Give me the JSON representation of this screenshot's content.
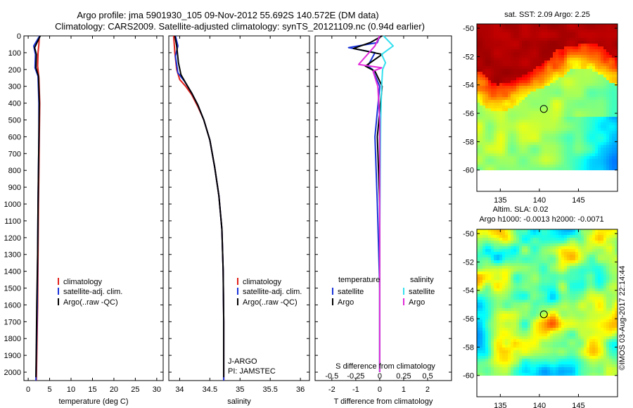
{
  "header": {
    "line1": "Argo profile: jma 5901930_105 09-Nov-2012 55.692S 140.572E (DM data)",
    "line2": "Climatology: CARS2009. Satellite-adjusted climatology: synTS_20121109.nc (0.94d earlier)"
  },
  "credit": "©IMOS 03-Aug-2017 22:14:44",
  "colors": {
    "climatology": "#e0201b",
    "satellite": "#1832d8",
    "argo": "#000000",
    "satellite_salinity": "#33e0ef",
    "argo_salinity": "#e22ad9"
  },
  "chart_data": [
    {
      "type": "line",
      "id": "temperature",
      "xlabel": "temperature (deg C)",
      "ylabel": "",
      "xlim": [
        -1,
        31.5
      ],
      "ylim": [
        2050,
        0
      ],
      "xticks": [
        0,
        5,
        10,
        15,
        20,
        25,
        30
      ],
      "yticks": [
        0,
        100,
        200,
        300,
        400,
        500,
        600,
        700,
        800,
        900,
        1000,
        1100,
        1200,
        1300,
        1400,
        1500,
        1600,
        1700,
        1800,
        1900,
        2000
      ],
      "legend": [
        "climatology",
        "satellite-adj. clim.",
        "Argo(..raw -QC)"
      ],
      "legend_placement": "lower-middle",
      "series": [
        {
          "name": "climatology",
          "x": [
            2.6,
            2.5,
            2.3,
            2.2,
            2.5,
            2.7,
            2.6,
            2.5,
            2.4,
            2.3,
            2.2,
            1.9
          ],
          "y": [
            0,
            50,
            100,
            180,
            250,
            400,
            600,
            800,
            1000,
            1300,
            1600,
            2050
          ]
        },
        {
          "name": "satellite-adj. clim.",
          "x": [
            2.7,
            1.3,
            1.7,
            1.6,
            2.3,
            2.5,
            2.5,
            2.4,
            2.3,
            2.2,
            2.1,
            1.8
          ],
          "y": [
            0,
            60,
            110,
            190,
            240,
            400,
            600,
            800,
            1000,
            1300,
            1600,
            2050
          ]
        },
        {
          "name": "Argo(..raw -QC)",
          "x": [
            2.8,
            1.5,
            1.9,
            1.8,
            2.4,
            2.6,
            2.5,
            2.4,
            2.3,
            2.2,
            2.0,
            1.8
          ],
          "y": [
            0,
            70,
            110,
            190,
            240,
            400,
            600,
            800,
            1000,
            1300,
            1600,
            2030
          ]
        }
      ]
    },
    {
      "type": "line",
      "id": "salinity",
      "xlabel": "salinity",
      "ylabel": "",
      "xlim": [
        33.82,
        36.15
      ],
      "ylim": [
        2050,
        0
      ],
      "xticks": [
        34,
        34.5,
        35,
        35.5,
        36
      ],
      "legend": [
        "climatology",
        "satellite-adj. clim.",
        "Argo(..raw -QC)"
      ],
      "legend_placement": "lower-right",
      "annotations": [
        "J-ARGO",
        "PI: JAMSTEC"
      ],
      "series": [
        {
          "name": "climatology",
          "x": [
            33.9,
            33.92,
            33.95,
            34.0,
            34.1,
            34.2,
            34.3,
            34.4,
            34.5,
            34.58,
            34.65,
            34.7,
            34.72,
            34.73,
            34.73
          ],
          "y": [
            0,
            100,
            200,
            260,
            300,
            350,
            420,
            500,
            620,
            780,
            950,
            1150,
            1400,
            1700,
            2050
          ]
        },
        {
          "name": "satellite-adj. clim.",
          "x": [
            33.93,
            33.97,
            33.93,
            33.97,
            34.08,
            34.2,
            34.3,
            34.4,
            34.5,
            34.58,
            34.65,
            34.7,
            34.72,
            34.73,
            34.73
          ],
          "y": [
            0,
            60,
            120,
            220,
            270,
            340,
            410,
            500,
            620,
            780,
            950,
            1150,
            1400,
            1700,
            2050
          ]
        },
        {
          "name": "Argo(..raw -QC)",
          "x": [
            33.92,
            33.95,
            33.98,
            34.02,
            34.1,
            34.2,
            34.3,
            34.4,
            34.5,
            34.58,
            34.65,
            34.7,
            34.72,
            34.73,
            34.73
          ],
          "y": [
            0,
            60,
            160,
            230,
            280,
            340,
            410,
            500,
            620,
            780,
            950,
            1150,
            1400,
            1700,
            2030
          ]
        }
      ]
    },
    {
      "type": "line",
      "id": "difference",
      "xlabel": "T difference from climatology",
      "xlabel_top": "S difference from climatology",
      "xlim": [
        -2.7,
        3.0
      ],
      "ylim": [
        2050,
        0
      ],
      "xticks": [
        -2,
        -1,
        0,
        1,
        2
      ],
      "s_xlim": [
        -0.675,
        0.75
      ],
      "s_xticks": [
        -0.5,
        -0.25,
        0,
        0.25,
        0.5
      ],
      "s_xticklabels": [
        "-0.5",
        "-0.25",
        "0",
        "0.25",
        "0.5"
      ],
      "legend_headers": [
        "temperature",
        "salinity"
      ],
      "legend": [
        "satellite",
        "Argo",
        "satellite",
        "Argo"
      ],
      "series": [
        {
          "name": "satellite",
          "quantity": "temperature",
          "x": [
            0,
            -0.1,
            -1.3,
            -0.2,
            -0.5,
            -0.3,
            0,
            -0.2,
            -0.1,
            0,
            0
          ],
          "y": [
            0,
            40,
            70,
            100,
            180,
            200,
            300,
            600,
            1000,
            1500,
            2000
          ]
        },
        {
          "name": "Argo",
          "quantity": "temperature",
          "x": [
            0.1,
            -0.4,
            -1.1,
            0.1,
            -0.6,
            -0.2,
            0.1,
            -0.1,
            0,
            0,
            0
          ],
          "y": [
            0,
            40,
            75,
            110,
            180,
            210,
            300,
            600,
            1000,
            1500,
            2000
          ]
        },
        {
          "name": "satellite",
          "quantity": "salinity",
          "x": [
            0.04,
            0.14,
            0.02,
            0.06,
            0.03,
            0.02,
            0.01,
            0.005,
            0,
            0
          ],
          "y": [
            0,
            60,
            110,
            160,
            200,
            300,
            500,
            800,
            1200,
            2000
          ]
        },
        {
          "name": "Argo",
          "quantity": "salinity",
          "x": [
            0,
            -0.05,
            -0.22,
            0.02,
            -0.07,
            -0.02,
            0,
            0,
            0
          ],
          "y": [
            0,
            60,
            170,
            190,
            210,
            300,
            500,
            800,
            2000
          ]
        }
      ]
    },
    {
      "type": "heatmap",
      "id": "sst-map",
      "title": "sat. SST: 2.09 Argo: 2.25",
      "xlim": [
        132,
        150
      ],
      "ylim": [
        -61.5,
        -49.7
      ],
      "data_ylim": [
        -60,
        -49.7
      ],
      "xticks": [
        135,
        140,
        145
      ],
      "yticks": [
        -50,
        -52,
        -54,
        -56,
        -58,
        -60
      ],
      "marker": {
        "lon": 140.572,
        "lat": -55.692
      }
    },
    {
      "type": "heatmap",
      "id": "sla-map",
      "title": "Altim. SLA: 0.02",
      "subtitle": "Argo h1000: -0.0013 h2000: -0.0071",
      "xlim": [
        132,
        150
      ],
      "ylim": [
        -61.5,
        -49.7
      ],
      "data_ylim": [
        -60,
        -49.7
      ],
      "xticks": [
        135,
        140,
        145
      ],
      "yticks": [
        -50,
        -52,
        -54,
        -56,
        -58,
        -60
      ],
      "marker": {
        "lon": 140.572,
        "lat": -55.692
      }
    }
  ]
}
